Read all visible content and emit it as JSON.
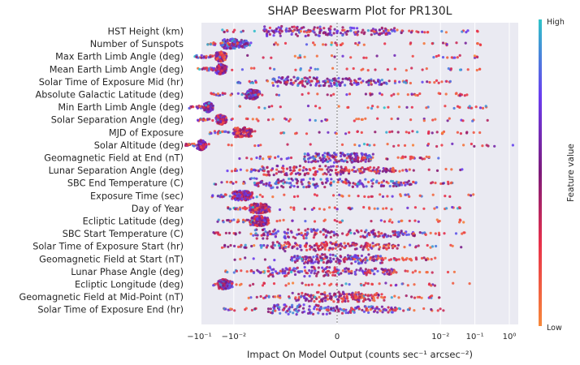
{
  "chart_data": {
    "type": "scatter",
    "subtype": "shap-beeswarm",
    "title": "SHAP Beeswarm Plot for PR130L",
    "xlabel": "Impact On Model Output (counts sec⁻¹ arcsec⁻²)",
    "xscale": "symlog",
    "linthresh": 0.0001,
    "xlim": [
      -0.3,
      1.5
    ],
    "xticks": [
      {
        "value": -0.1,
        "label": "−10⁻¹"
      },
      {
        "value": -0.01,
        "label": "−10⁻²"
      },
      {
        "value": 0,
        "label": "0"
      },
      {
        "value": 0.01,
        "label": "10⁻²"
      },
      {
        "value": 0.1,
        "label": "10⁻¹"
      },
      {
        "value": 1,
        "label": "10⁰"
      }
    ],
    "colorbar": {
      "label": "Feature value",
      "high": "High",
      "low": "Low",
      "colors": [
        "#f7883a",
        "#e8304a",
        "#7d1a7a",
        "#6a3cf0",
        "#2ec4c8"
      ]
    },
    "features": [
      {
        "name": "HST Height (km)",
        "center": -0.0002,
        "low": -0.03,
        "high": 0.15,
        "dense": [
          -0.0015,
          0.0008
        ]
      },
      {
        "name": "Number of Sunspots",
        "center": -0.012,
        "low": -0.06,
        "high": 0.25,
        "dense": [
          -0.02,
          -0.004
        ]
      },
      {
        "name": "Max Earth Limb Angle (deg)",
        "center": -0.025,
        "low": -0.14,
        "high": 0.2,
        "dense": [
          -0.03,
          -0.018
        ]
      },
      {
        "name": "Mean Earth Limb Angle (deg)",
        "center": -0.025,
        "low": -0.11,
        "high": 0.35,
        "dense": [
          -0.03,
          -0.018
        ]
      },
      {
        "name": "Solar Time of Exposure Mid (hr)",
        "center": -0.0003,
        "low": -0.01,
        "high": 0.02,
        "dense": [
          -0.0008,
          0.0003
        ]
      },
      {
        "name": "Absolute Galactic Latitude (deg)",
        "center": -0.003,
        "low": -0.05,
        "high": 0.06,
        "dense": [
          -0.004,
          -0.002
        ]
      },
      {
        "name": "Min Earth Limb Angle (deg)",
        "center": -0.055,
        "low": -0.2,
        "high": 0.25,
        "dense": [
          -0.065,
          -0.045
        ]
      },
      {
        "name": "Solar Separation Angle (deg)",
        "center": -0.025,
        "low": -0.14,
        "high": 0.3,
        "dense": [
          -0.03,
          -0.018
        ]
      },
      {
        "name": "MJD of Exposure",
        "center": -0.006,
        "low": -0.05,
        "high": 0.15,
        "dense": [
          -0.01,
          -0.003
        ]
      },
      {
        "name": "Solar Altitude (deg)",
        "center": -0.09,
        "low": -0.25,
        "high": 1.5,
        "dense": [
          -0.1,
          -0.07
        ]
      },
      {
        "name": "Geomagnetic Field at End (nT)",
        "center": 0.0,
        "low": -0.007,
        "high": 0.01,
        "dense": [
          -0.0001,
          0.0001
        ]
      },
      {
        "name": "Lunar Separation Angle (deg)",
        "center": -0.0005,
        "low": -0.02,
        "high": 0.05,
        "dense": [
          -0.0015,
          0.0005
        ]
      },
      {
        "name": "SBC End Temperature (C)",
        "center": -0.0005,
        "low": -0.04,
        "high": 0.03,
        "dense": [
          -0.003,
          0.002
        ]
      },
      {
        "name": "Exposure Time (sec)",
        "center": -0.006,
        "low": -0.05,
        "high": 0.12,
        "dense": [
          -0.01,
          -0.003
        ]
      },
      {
        "name": "Day of Year",
        "center": -0.002,
        "low": -0.015,
        "high": 0.06,
        "dense": [
          -0.003,
          -0.001
        ]
      },
      {
        "name": "Ecliptic Latitude (deg)",
        "center": -0.002,
        "low": -0.03,
        "high": 0.1,
        "dense": [
          -0.003,
          -0.001
        ]
      },
      {
        "name": "SBC Start Temperature (C)",
        "center": -0.0005,
        "low": -0.06,
        "high": 0.06,
        "dense": [
          -0.003,
          0.002
        ]
      },
      {
        "name": "Solar Time of Exposure Start (hr)",
        "center": -0.0003,
        "low": -0.03,
        "high": 0.04,
        "dense": [
          -0.001,
          0.0005
        ]
      },
      {
        "name": "Geomagnetic Field at Start (nT)",
        "center": 0.0,
        "low": -0.01,
        "high": 0.008,
        "dense": [
          -0.0002,
          0.0002
        ]
      },
      {
        "name": "Lunar Phase Angle (deg)",
        "center": -0.0003,
        "low": -0.02,
        "high": 0.03,
        "dense": [
          -0.001,
          0.0005
        ]
      },
      {
        "name": "Ecliptic Longitude (deg)",
        "center": -0.02,
        "low": -0.04,
        "high": 0.1,
        "dense": [
          -0.025,
          -0.012
        ]
      },
      {
        "name": "Geomagnetic Field at Mid-Point (nT)",
        "center": 0.0,
        "low": -0.005,
        "high": 0.01,
        "dense": [
          -0.0002,
          0.0002
        ]
      },
      {
        "name": "Solar Time of Exposure End (hr)",
        "center": -0.0003,
        "low": -0.02,
        "high": 0.02,
        "dense": [
          -0.001,
          0.0005
        ]
      }
    ]
  }
}
